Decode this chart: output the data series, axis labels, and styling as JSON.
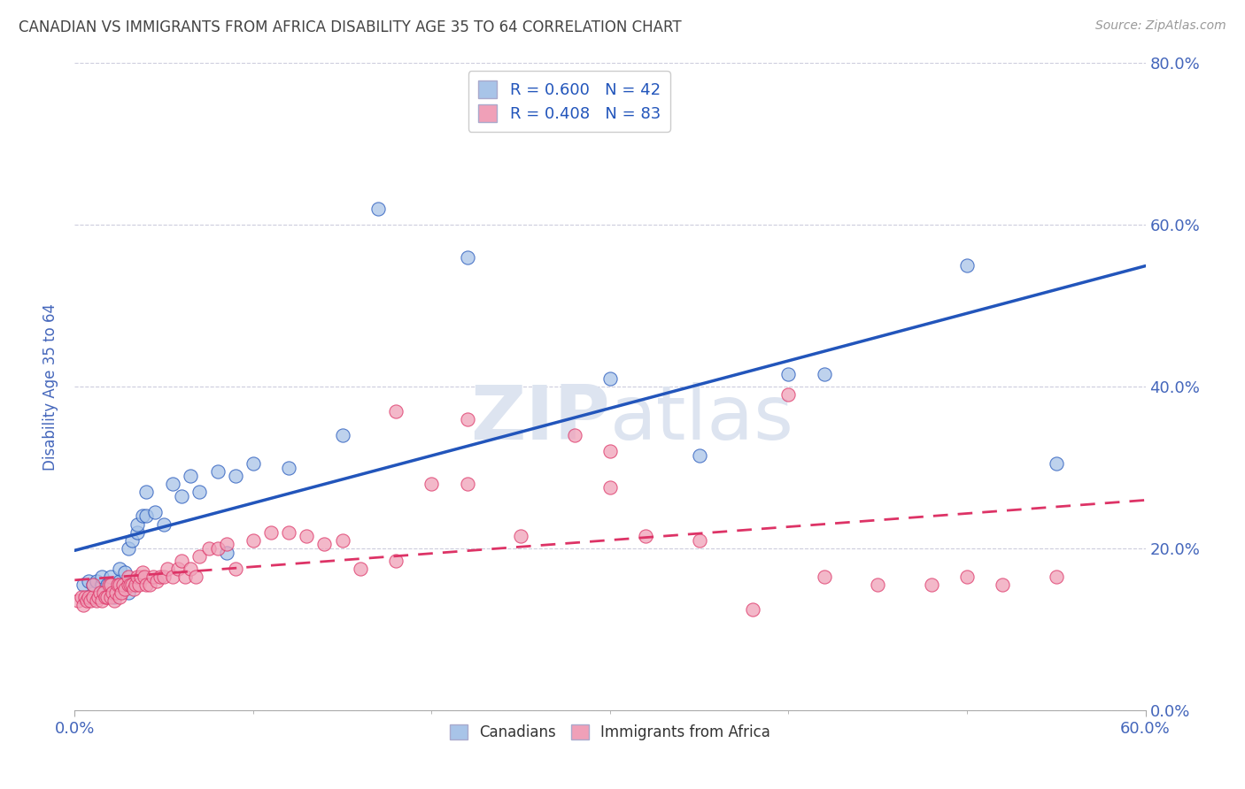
{
  "title": "CANADIAN VS IMMIGRANTS FROM AFRICA DISABILITY AGE 35 TO 64 CORRELATION CHART",
  "source": "Source: ZipAtlas.com",
  "ylabel": "Disability Age 35 to 64",
  "xlabel": "",
  "xlim": [
    0.0,
    0.6
  ],
  "ylim": [
    0.0,
    0.8
  ],
  "xtick_vals": [
    0.0,
    0.6
  ],
  "xtick_labels": [
    "0.0%",
    "60.0%"
  ],
  "yticks": [
    0.0,
    0.2,
    0.4,
    0.6,
    0.8
  ],
  "ytick_labels": [
    "0.0%",
    "20.0%",
    "40.0%",
    "60.0%",
    "80.0%"
  ],
  "legend_r1": "R = 0.600",
  "legend_n1": "N = 42",
  "legend_r2": "R = 0.408",
  "legend_n2": "N = 83",
  "canadians_label": "Canadians",
  "immigrants_label": "Immigrants from Africa",
  "canadian_color": "#a8c4e8",
  "immigrant_color": "#f0a0b8",
  "canadian_line_color": "#2255bb",
  "immigrant_line_color": "#dd3366",
  "background_color": "#ffffff",
  "grid_color": "#ccccdd",
  "title_color": "#444444",
  "axis_label_color": "#4466bb",
  "tick_color": "#4466bb",
  "watermark_color": "#dde4f0",
  "canadians_x": [
    0.005,
    0.008,
    0.01,
    0.012,
    0.015,
    0.015,
    0.018,
    0.02,
    0.02,
    0.022,
    0.025,
    0.025,
    0.025,
    0.028,
    0.03,
    0.03,
    0.032,
    0.035,
    0.035,
    0.038,
    0.04,
    0.04,
    0.045,
    0.05,
    0.055,
    0.06,
    0.065,
    0.07,
    0.08,
    0.085,
    0.09,
    0.1,
    0.12,
    0.15,
    0.17,
    0.22,
    0.3,
    0.35,
    0.4,
    0.42,
    0.5,
    0.55
  ],
  "canadians_y": [
    0.155,
    0.16,
    0.155,
    0.16,
    0.155,
    0.165,
    0.155,
    0.155,
    0.165,
    0.14,
    0.155,
    0.16,
    0.175,
    0.17,
    0.145,
    0.2,
    0.21,
    0.22,
    0.23,
    0.24,
    0.24,
    0.27,
    0.245,
    0.23,
    0.28,
    0.265,
    0.29,
    0.27,
    0.295,
    0.195,
    0.29,
    0.305,
    0.3,
    0.34,
    0.62,
    0.56,
    0.41,
    0.315,
    0.415,
    0.415,
    0.55,
    0.305
  ],
  "immigrants_x": [
    0.002,
    0.004,
    0.005,
    0.006,
    0.007,
    0.008,
    0.009,
    0.01,
    0.01,
    0.012,
    0.013,
    0.014,
    0.015,
    0.016,
    0.017,
    0.018,
    0.019,
    0.02,
    0.02,
    0.021,
    0.022,
    0.023,
    0.024,
    0.025,
    0.025,
    0.026,
    0.027,
    0.028,
    0.03,
    0.03,
    0.031,
    0.032,
    0.033,
    0.034,
    0.035,
    0.036,
    0.037,
    0.038,
    0.039,
    0.04,
    0.042,
    0.044,
    0.046,
    0.048,
    0.05,
    0.052,
    0.055,
    0.058,
    0.06,
    0.062,
    0.065,
    0.068,
    0.07,
    0.075,
    0.08,
    0.085,
    0.09,
    0.1,
    0.11,
    0.12,
    0.13,
    0.14,
    0.15,
    0.16,
    0.18,
    0.2,
    0.22,
    0.25,
    0.28,
    0.3,
    0.32,
    0.35,
    0.38,
    0.4,
    0.42,
    0.45,
    0.48,
    0.5,
    0.52,
    0.55,
    0.18,
    0.22,
    0.3
  ],
  "immigrants_y": [
    0.135,
    0.14,
    0.13,
    0.14,
    0.135,
    0.14,
    0.135,
    0.14,
    0.155,
    0.135,
    0.14,
    0.145,
    0.135,
    0.145,
    0.14,
    0.14,
    0.155,
    0.14,
    0.155,
    0.145,
    0.135,
    0.145,
    0.155,
    0.14,
    0.155,
    0.145,
    0.155,
    0.15,
    0.155,
    0.165,
    0.155,
    0.155,
    0.15,
    0.155,
    0.165,
    0.155,
    0.165,
    0.17,
    0.165,
    0.155,
    0.155,
    0.165,
    0.16,
    0.165,
    0.165,
    0.175,
    0.165,
    0.175,
    0.185,
    0.165,
    0.175,
    0.165,
    0.19,
    0.2,
    0.2,
    0.205,
    0.175,
    0.21,
    0.22,
    0.22,
    0.215,
    0.205,
    0.21,
    0.175,
    0.185,
    0.28,
    0.28,
    0.215,
    0.34,
    0.32,
    0.215,
    0.21,
    0.125,
    0.39,
    0.165,
    0.155,
    0.155,
    0.165,
    0.155,
    0.165,
    0.37,
    0.36,
    0.275
  ]
}
